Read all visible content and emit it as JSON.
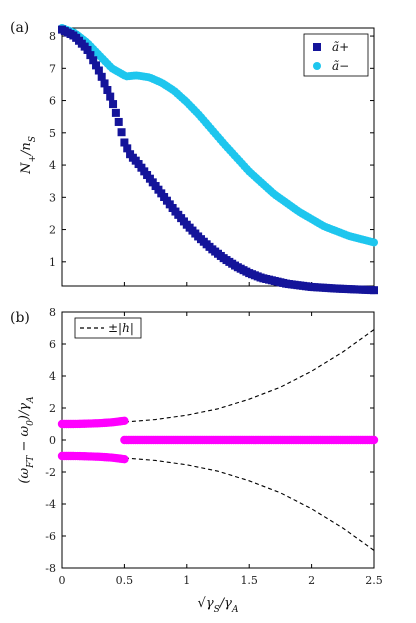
{
  "chart_data": [
    {
      "type": "scatter",
      "panel_label": "(a)",
      "ylabel": "N+/nS",
      "xlim": [
        0,
        2.5
      ],
      "ylim": [
        0.25,
        8.25
      ],
      "yticks": [
        1,
        2,
        3,
        4,
        5,
        6,
        7,
        8
      ],
      "legend_position": "top-right",
      "series": [
        {
          "name": "ã+",
          "marker": "square",
          "color": "#14149a",
          "x": [
            0,
            0.1,
            0.2,
            0.3,
            0.4,
            0.45,
            0.5,
            0.55,
            0.6,
            0.7,
            0.8,
            0.9,
            1.0,
            1.1,
            1.2,
            1.3,
            1.4,
            1.5,
            1.6,
            1.8,
            2.0,
            2.2,
            2.5
          ],
          "y": [
            8.2,
            8.0,
            7.6,
            6.9,
            6.0,
            5.4,
            4.7,
            4.3,
            4.1,
            3.6,
            3.1,
            2.6,
            2.15,
            1.75,
            1.4,
            1.1,
            0.85,
            0.65,
            0.5,
            0.32,
            0.22,
            0.17,
            0.12
          ]
        },
        {
          "name": "ã−",
          "marker": "circle",
          "color": "#1ec6ee",
          "x": [
            0,
            0.1,
            0.2,
            0.3,
            0.4,
            0.5,
            0.52,
            0.6,
            0.7,
            0.8,
            0.9,
            1.0,
            1.1,
            1.2,
            1.3,
            1.5,
            1.7,
            1.9,
            2.1,
            2.3,
            2.5
          ],
          "y": [
            8.25,
            8.1,
            7.8,
            7.4,
            7.0,
            6.78,
            6.75,
            6.78,
            6.72,
            6.55,
            6.3,
            5.95,
            5.55,
            5.1,
            4.65,
            3.8,
            3.1,
            2.55,
            2.1,
            1.8,
            1.6
          ]
        }
      ]
    },
    {
      "type": "line",
      "panel_label": "(b)",
      "xlabel": "√γS/γA",
      "ylabel": "(ωFT − ω0)/γA",
      "xlim": [
        0,
        2.5
      ],
      "ylim": [
        -8,
        8
      ],
      "xticks": [
        0,
        0.5,
        1,
        1.5,
        2,
        2.5
      ],
      "xticklabels": [
        "0",
        "0.5",
        "1",
        "1.5",
        "2",
        "2.5"
      ],
      "yticks": [
        -8,
        -6,
        -4,
        -2,
        0,
        2,
        4,
        6,
        8
      ],
      "legend_position": "top-left",
      "series": [
        {
          "name": "±|h|",
          "style": "dashed",
          "color": "#000000",
          "x": [
            0,
            0.25,
            0.5,
            0.75,
            1.0,
            1.25,
            1.5,
            1.75,
            2.0,
            2.25,
            2.5
          ],
          "y_pos": [
            1.0,
            1.03,
            1.12,
            1.28,
            1.55,
            1.95,
            2.55,
            3.3,
            4.3,
            5.5,
            6.9
          ],
          "y_neg": [
            -1.0,
            -1.03,
            -1.12,
            -1.28,
            -1.55,
            -1.95,
            -2.55,
            -3.3,
            -4.3,
            -5.5,
            -6.9
          ]
        },
        {
          "name": "markers",
          "style": "markers",
          "color": "#ff00ff",
          "branches": [
            {
              "x": [
                0,
                0.1,
                0.2,
                0.3,
                0.4,
                0.5
              ],
              "y": [
                1.0,
                1.0,
                1.02,
                1.05,
                1.1,
                1.2
              ]
            },
            {
              "x": [
                0,
                0.1,
                0.2,
                0.3,
                0.4,
                0.5
              ],
              "y": [
                -1.0,
                -1.0,
                -1.02,
                -1.05,
                -1.1,
                -1.2
              ]
            },
            {
              "x": [
                0.5,
                1.0,
                1.5,
                2.0,
                2.5
              ],
              "y": [
                0,
                0,
                0,
                0,
                0
              ]
            }
          ]
        }
      ]
    }
  ],
  "labels": {
    "panel_a": "(a)",
    "panel_b": "(b)",
    "legend_a_plus": "ã+",
    "legend_a_minus": "ã−",
    "legend_h": "±|h|"
  }
}
